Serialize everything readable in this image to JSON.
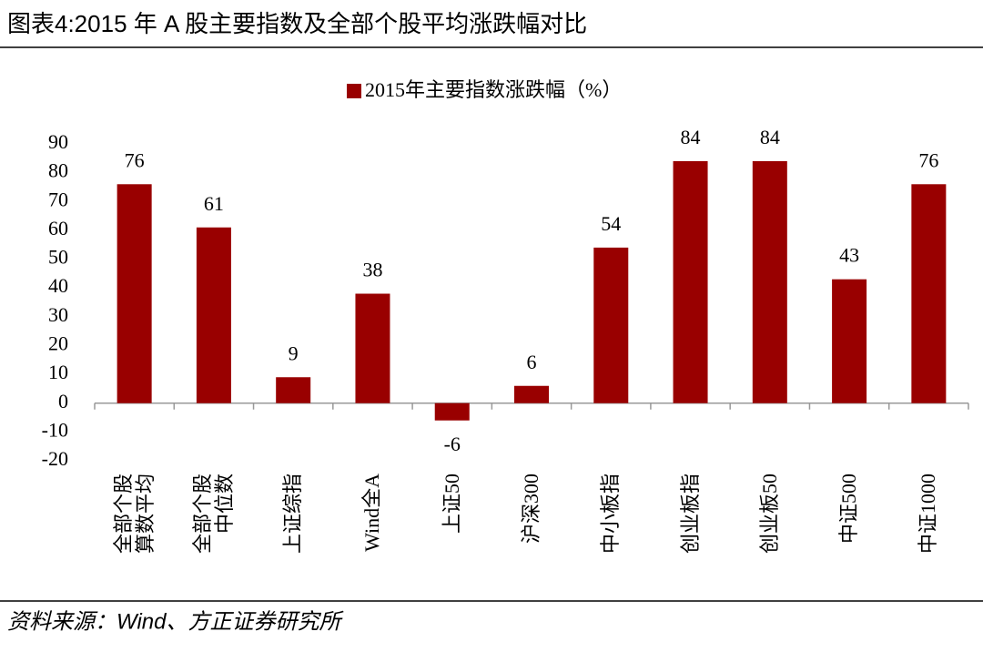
{
  "chart_data": {
    "type": "bar",
    "title": "图表4:2015 年 A 股主要指数及全部个股平均涨跌幅对比",
    "legend": "2015年主要指数涨跌幅（%）",
    "source": "资料来源：Wind、方正证券研究所",
    "categories": [
      "全部个股\n算数平均",
      "全部个股\n中位数",
      "上证综指",
      "Wind全A",
      "上证50",
      "沪深300",
      "中小板指",
      "创业板指",
      "创业板50",
      "中证500",
      "中证1000"
    ],
    "values": [
      76,
      61,
      9,
      38,
      -6,
      6,
      54,
      84,
      84,
      43,
      76
    ],
    "color": "#990000",
    "ylim": [
      -20,
      90
    ],
    "yticks": [
      -20,
      -10,
      0,
      10,
      20,
      30,
      40,
      50,
      60,
      70,
      80,
      90
    ],
    "grid": false
  }
}
